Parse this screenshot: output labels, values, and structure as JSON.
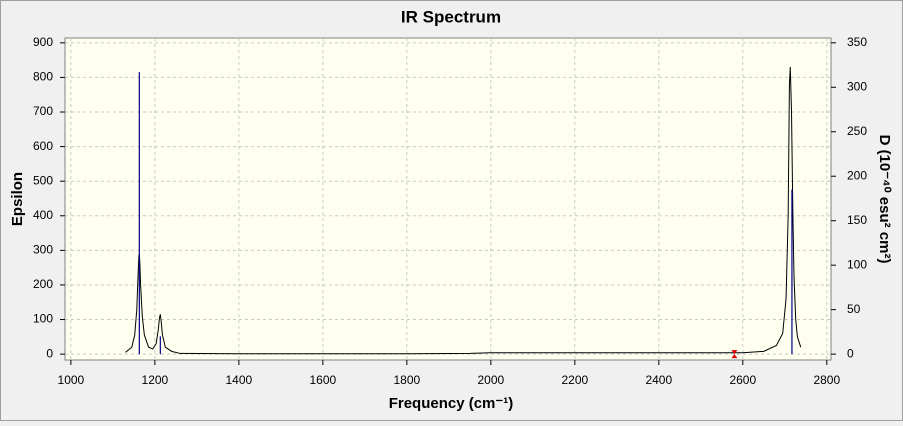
{
  "chart_data": {
    "type": "line",
    "title": "IR Spectrum",
    "x_label": "Frequency (cm⁻¹)",
    "y_label": "Epsilon",
    "y2_label": "D (10⁻⁴⁰ esu² cm²)",
    "xlim": [
      986,
      2810
    ],
    "xticks": [
      1000,
      1200,
      1400,
      1600,
      1800,
      2000,
      2200,
      2400,
      2600,
      2800
    ],
    "ylim": [
      -17,
      914
    ],
    "yticks": [
      0,
      100,
      200,
      300,
      400,
      500,
      600,
      700,
      800,
      900
    ],
    "y2lim": [
      -6.6,
      355.4
    ],
    "y2ticks": [
      0,
      50,
      100,
      150,
      200,
      250,
      300,
      350
    ],
    "grid": true,
    "series": [
      {
        "name": "Epsilon",
        "color": "#000000",
        "x": [
          1130,
          1145,
          1152,
          1157,
          1160,
          1162,
          1163,
          1164,
          1166,
          1170,
          1175,
          1185,
          1195,
          1203,
          1208,
          1211,
          1213,
          1215,
          1218,
          1225,
          1240,
          1260,
          1400,
          1600,
          1800,
          1950,
          2000,
          2200,
          2400,
          2600,
          2650,
          2680,
          2695,
          2703,
          2708,
          2711,
          2713,
          2716,
          2719,
          2722,
          2726,
          2730,
          2738
        ],
        "values": [
          5,
          20,
          55,
          130,
          230,
          285,
          290,
          270,
          200,
          110,
          55,
          20,
          15,
          30,
          70,
          105,
          115,
          95,
          55,
          20,
          8,
          2,
          1,
          1,
          1,
          2,
          4,
          4,
          4,
          4,
          8,
          25,
          60,
          160,
          400,
          780,
          830,
          700,
          420,
          220,
          100,
          50,
          20
        ]
      },
      {
        "name": "D",
        "color": "#00008b",
        "axis": "y2",
        "style": "sticks",
        "x": [
          1163,
          1213,
          2717
        ],
        "values": [
          317,
          20,
          185
        ]
      }
    ],
    "marker": {
      "x": 2580,
      "value": 0,
      "color": "#e00000"
    }
  }
}
